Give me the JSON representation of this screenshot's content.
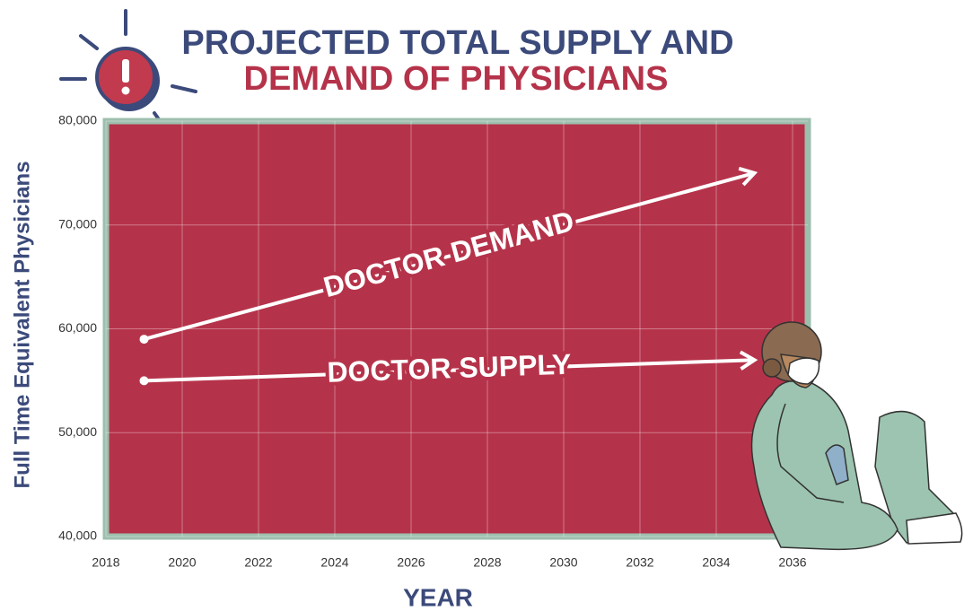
{
  "chart_data": {
    "type": "line",
    "title": "PROJECTED TOTAL SUPPLY AND",
    "subtitle": "DEMAND OF PHYSICIANS",
    "x_label": "YEAR",
    "y_label": "Full Time Equivalent Physicians",
    "x": [
      2019,
      2035
    ],
    "series": [
      {
        "name": "DOCTOR DEMAND",
        "color": "#ffffff",
        "values": [
          59000,
          75000
        ]
      },
      {
        "name": "DOCTOR SUPPLY",
        "color": "#ffffff",
        "values": [
          55000,
          57000
        ]
      }
    ],
    "xlim": [
      2018,
      2036.4
    ],
    "xticks": [
      2018,
      2020,
      2022,
      2024,
      2026,
      2028,
      2030,
      2032,
      2034,
      2036
    ],
    "ylim": [
      40000,
      80000
    ],
    "yticks": [
      {
        "value": 40000,
        "label": "40,000"
      },
      {
        "value": 50000,
        "label": "50,000"
      },
      {
        "value": 60000,
        "label": "60,000"
      },
      {
        "value": 70000,
        "label": "70,000"
      },
      {
        "value": 80000,
        "label": "80,000"
      }
    ],
    "plot_color": "#b5334a",
    "grid": true
  }
}
